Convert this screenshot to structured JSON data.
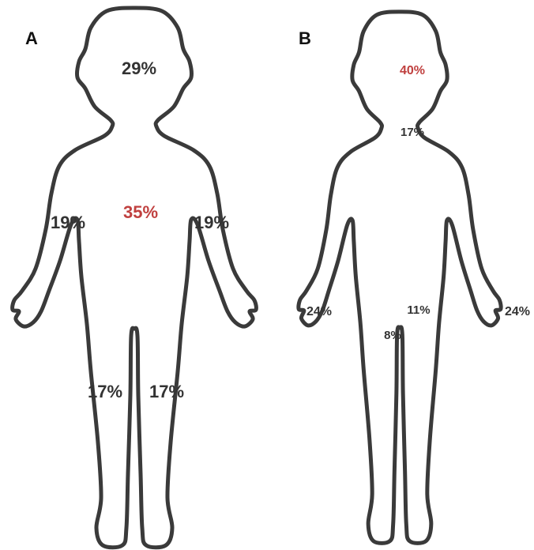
{
  "panels": [
    {
      "label": "A",
      "regions": [
        {
          "text": "29%",
          "color": "#333333"
        },
        {
          "text": "35%",
          "color": "#c0403f"
        },
        {
          "text": "19%",
          "color": "#333333"
        },
        {
          "text": "19%",
          "color": "#333333"
        },
        {
          "text": "17%",
          "color": "#333333"
        },
        {
          "text": "17%",
          "color": "#333333"
        }
      ]
    },
    {
      "label": "B",
      "regions": [
        {
          "text": "40%",
          "color": "#c0403f"
        },
        {
          "text": "17%",
          "color": "#333333"
        },
        {
          "text": "24%",
          "color": "#333333"
        },
        {
          "text": "11%",
          "color": "#333333"
        },
        {
          "text": "24%",
          "color": "#333333"
        },
        {
          "text": "8%",
          "color": "#333333"
        }
      ]
    }
  ]
}
